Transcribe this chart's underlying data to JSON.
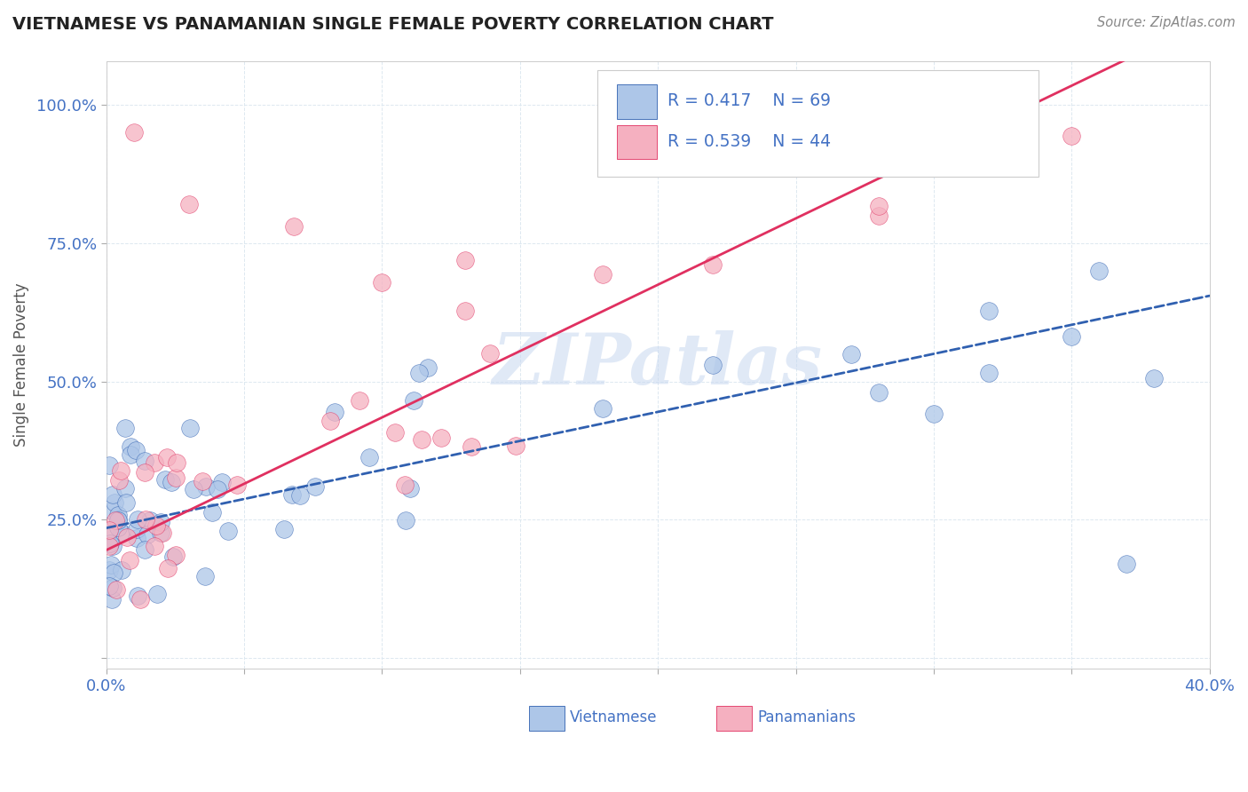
{
  "title": "VIETNAMESE VS PANAMANIAN SINGLE FEMALE POVERTY CORRELATION CHART",
  "source": "Source: ZipAtlas.com",
  "ylabel": "Single Female Poverty",
  "xlim": [
    0.0,
    0.4
  ],
  "ylim": [
    -0.02,
    1.08
  ],
  "viet_color": "#adc6e8",
  "pan_color": "#f5b0c0",
  "viet_line_color": "#3060b0",
  "pan_line_color": "#e03060",
  "viet_line_style": "--",
  "pan_line_style": "-",
  "watermark": "ZIPatlas",
  "watermark_color": "#c8d8f0",
  "r_viet": 0.417,
  "n_viet": 69,
  "r_pan": 0.539,
  "n_pan": 44,
  "viet_intercept": 0.245,
  "viet_slope": 1.05,
  "pan_intercept": 0.195,
  "pan_slope": 2.35,
  "background_color": "#ffffff",
  "grid_color": "#dde8f0",
  "tick_color": "#4472c4",
  "legend_text_color": "#4472c4",
  "title_color": "#222222"
}
